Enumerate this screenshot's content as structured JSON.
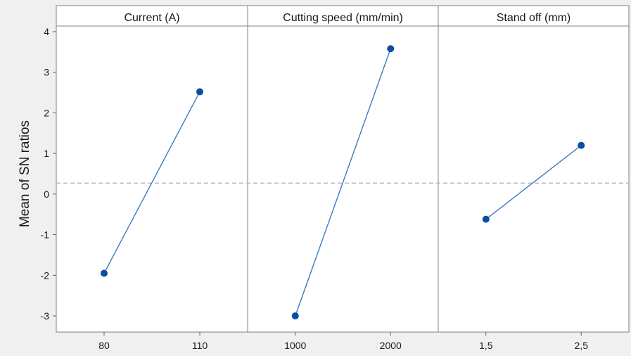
{
  "chart_data": {
    "type": "line",
    "ylabel": "Mean of SN ratios",
    "ylim": [
      -3.3,
      4.15
    ],
    "yticks": [
      4,
      3,
      2,
      1,
      0,
      -1,
      -2,
      -3
    ],
    "reference_line": 0.27,
    "grid": false,
    "colors": {
      "line": "#3c7bbf",
      "marker": "#0a4ea0",
      "reference": "#bdbdbd",
      "panel_bg": "#ffffff",
      "frame": "#808080"
    },
    "panels": [
      {
        "title": "Current (A)",
        "categories": [
          "80",
          "110"
        ],
        "values": [
          -1.95,
          2.52
        ]
      },
      {
        "title": "Cutting speed (mm/min)",
        "categories": [
          "1000",
          "2000"
        ],
        "values": [
          -3.0,
          3.58
        ]
      },
      {
        "title": "Stand off (mm)",
        "categories": [
          "1,5",
          "2,5"
        ],
        "values": [
          -0.62,
          1.2
        ]
      }
    ]
  }
}
